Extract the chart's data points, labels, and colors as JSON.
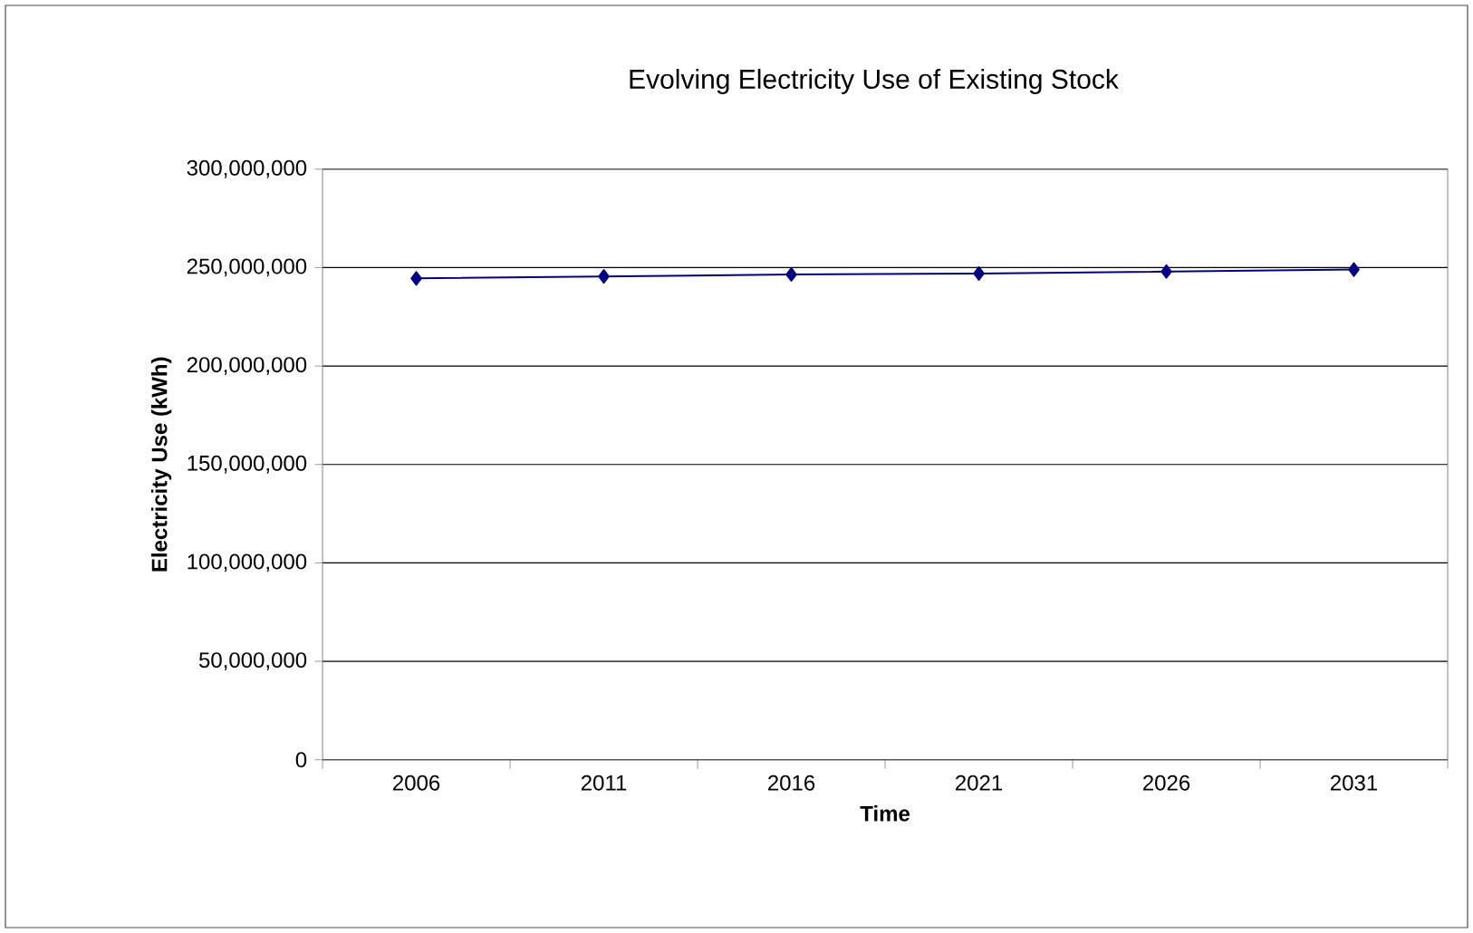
{
  "chart_data": {
    "type": "line",
    "title": "Evolving Electricity Use of Existing Stock",
    "xlabel": "Time",
    "ylabel": "Electricity Use (kWh)",
    "categories": [
      "2006",
      "2011",
      "2016",
      "2021",
      "2026",
      "2031"
    ],
    "series": [
      {
        "color": "#000080",
        "values": [
          244500000,
          245500000,
          246500000,
          247000000,
          248000000,
          249000000
        ]
      }
    ],
    "ylim": [
      0,
      300000000
    ],
    "yticks": [
      0,
      {
        "value": 50000000,
        "label": "50,000,000"
      },
      {
        "value": 100000000,
        "label": "100,000,000"
      },
      {
        "value": 150000000,
        "label": "150,000,000"
      },
      {
        "value": 200000000,
        "label": "200,000,000"
      },
      {
        "value": 250000000,
        "label": "250,000,000"
      },
      {
        "value": 300000000,
        "label": "300,000,000"
      }
    ],
    "grid": "y",
    "marker": "diamond",
    "line_style": "solid"
  }
}
